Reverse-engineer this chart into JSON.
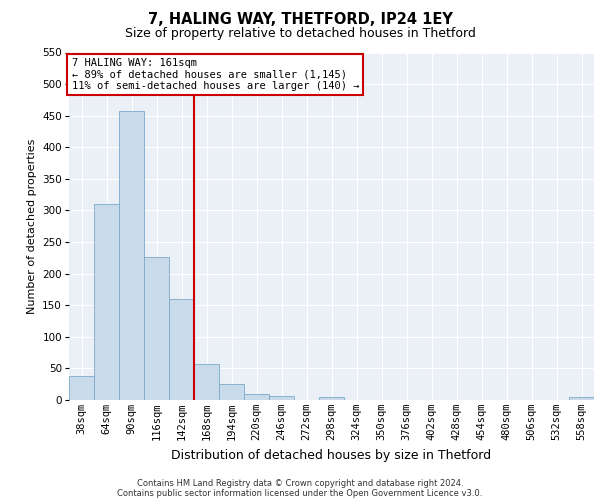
{
  "title_line1": "7, HALING WAY, THETFORD, IP24 1EY",
  "title_line2": "Size of property relative to detached houses in Thetford",
  "xlabel": "Distribution of detached houses by size in Thetford",
  "ylabel": "Number of detached properties",
  "footer_line1": "Contains HM Land Registry data © Crown copyright and database right 2024.",
  "footer_line2": "Contains public sector information licensed under the Open Government Licence v3.0.",
  "categories": [
    "38sqm",
    "64sqm",
    "90sqm",
    "116sqm",
    "142sqm",
    "168sqm",
    "194sqm",
    "220sqm",
    "246sqm",
    "272sqm",
    "298sqm",
    "324sqm",
    "350sqm",
    "376sqm",
    "402sqm",
    "428sqm",
    "454sqm",
    "480sqm",
    "506sqm",
    "532sqm",
    "558sqm"
  ],
  "values": [
    38,
    311,
    457,
    226,
    160,
    57,
    25,
    10,
    7,
    0,
    5,
    0,
    0,
    0,
    0,
    0,
    0,
    0,
    0,
    0,
    4
  ],
  "bar_color": "#c9daea",
  "bar_edge_color": "#7aaac8",
  "vline_color": "#cc0000",
  "vline_pos": 4.5,
  "ylim": [
    0,
    550
  ],
  "yticks": [
    0,
    50,
    100,
    150,
    200,
    250,
    300,
    350,
    400,
    450,
    500,
    550
  ],
  "annotation_text": "7 HALING WAY: 161sqm\n← 89% of detached houses are smaller (1,145)\n11% of semi-detached houses are larger (140) →",
  "annotation_box_color": "#ffffff",
  "annotation_box_edge": "#cc0000",
  "bg_color": "#eaf0f6",
  "grid_color": "#ffffff",
  "title_fontsize": 10.5,
  "subtitle_fontsize": 9,
  "ylabel_fontsize": 8,
  "xlabel_fontsize": 9,
  "tick_fontsize": 7.5,
  "footer_fontsize": 6,
  "annot_fontsize": 7.5
}
